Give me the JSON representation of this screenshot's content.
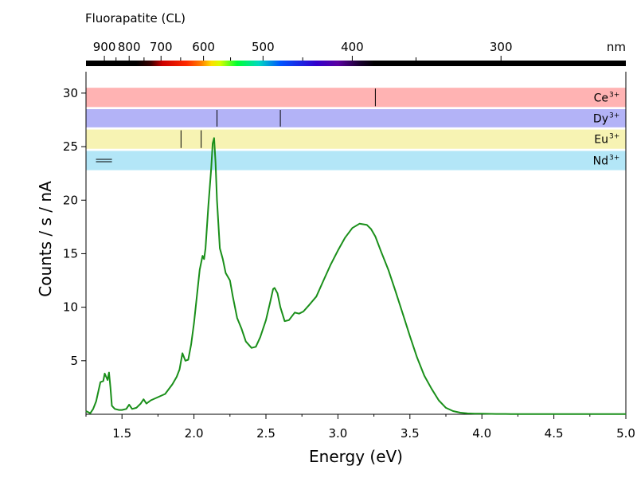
{
  "chart_data": {
    "type": "line",
    "title": "Fluorapatite (CL)",
    "xlabel": "Energy (eV)",
    "ylabel": "Counts / s / nA",
    "xlim": [
      1.25,
      5.0
    ],
    "ylim": [
      0,
      32
    ],
    "x_ticks": [
      1.5,
      2.0,
      2.5,
      3.0,
      3.5,
      4.0,
      4.5,
      5.0
    ],
    "x_tick_labels": [
      "1.5",
      "2.0",
      "2.5",
      "3.0",
      "3.5",
      "4.0",
      "4.5",
      "5.0"
    ],
    "y_ticks": [
      5,
      10,
      15,
      20,
      25,
      30
    ],
    "y_tick_labels": [
      "5",
      "10",
      "15",
      "20",
      "25",
      "30"
    ],
    "top_axis": {
      "unit": "nm",
      "ticks_nm": [
        900,
        800,
        700,
        600,
        500,
        400,
        300
      ],
      "tick_labels": [
        "900",
        "800",
        "700",
        "600",
        "500",
        "400",
        "300"
      ]
    },
    "series": [
      {
        "color": "#1a8f1a",
        "x": [
          1.25,
          1.28,
          1.3,
          1.32,
          1.35,
          1.37,
          1.38,
          1.4,
          1.41,
          1.42,
          1.43,
          1.45,
          1.48,
          1.5,
          1.53,
          1.55,
          1.57,
          1.6,
          1.63,
          1.65,
          1.67,
          1.7,
          1.75,
          1.8,
          1.85,
          1.88,
          1.9,
          1.92,
          1.94,
          1.96,
          1.98,
          2.0,
          2.02,
          2.04,
          2.06,
          2.07,
          2.08,
          2.1,
          2.12,
          2.13,
          2.14,
          2.15,
          2.16,
          2.18,
          2.2,
          2.22,
          2.25,
          2.27,
          2.3,
          2.33,
          2.36,
          2.4,
          2.43,
          2.46,
          2.5,
          2.53,
          2.55,
          2.56,
          2.58,
          2.6,
          2.63,
          2.66,
          2.7,
          2.73,
          2.76,
          2.8,
          2.85,
          2.9,
          2.95,
          3.0,
          3.05,
          3.1,
          3.15,
          3.2,
          3.23,
          3.26,
          3.3,
          3.35,
          3.4,
          3.45,
          3.5,
          3.55,
          3.6,
          3.65,
          3.7,
          3.75,
          3.8,
          3.85,
          3.9,
          3.95,
          4.0,
          4.1,
          4.2,
          4.3,
          4.4,
          4.5,
          4.6,
          4.7,
          4.8,
          4.9,
          5.0
        ],
        "y": [
          0.3,
          0.1,
          0.5,
          1.2,
          3.0,
          3.1,
          3.8,
          3.2,
          3.9,
          2.5,
          0.8,
          0.5,
          0.4,
          0.4,
          0.5,
          0.9,
          0.5,
          0.6,
          1.0,
          1.4,
          1.0,
          1.3,
          1.6,
          1.9,
          2.8,
          3.5,
          4.2,
          5.7,
          5.0,
          5.1,
          6.5,
          8.5,
          11.0,
          13.5,
          14.8,
          14.5,
          15.5,
          19.5,
          23.0,
          25.3,
          25.8,
          23.5,
          20.0,
          15.5,
          14.5,
          13.2,
          12.5,
          11.0,
          9.0,
          8.0,
          6.8,
          6.2,
          6.3,
          7.2,
          8.8,
          10.5,
          11.7,
          11.8,
          11.3,
          10.0,
          8.7,
          8.8,
          9.5,
          9.4,
          9.6,
          10.2,
          11.0,
          12.5,
          14.0,
          15.3,
          16.5,
          17.4,
          17.8,
          17.7,
          17.3,
          16.6,
          15.2,
          13.5,
          11.5,
          9.4,
          7.3,
          5.3,
          3.6,
          2.4,
          1.3,
          0.6,
          0.3,
          0.15,
          0.08,
          0.05,
          0.05,
          0.03,
          0.02,
          0.02,
          0.02,
          0.02,
          0.02,
          0.02,
          0.02,
          0.02,
          0.02
        ]
      }
    ],
    "ion_bands": [
      {
        "name": "Ce",
        "sup": "3+",
        "color": "#ffb3b3",
        "y_range": [
          28.7,
          30.5
        ],
        "lines_ev": [
          3.26
        ]
      },
      {
        "name": "Dy",
        "sup": "3+",
        "color": "#b3b3f7",
        "y_range": [
          26.8,
          28.5
        ],
        "lines_ev": [
          2.16,
          2.6
        ]
      },
      {
        "name": "Eu",
        "sup": "3+",
        "color": "#f7f3b3",
        "y_range": [
          24.8,
          26.6
        ],
        "lines_ev": [
          1.91,
          2.05
        ]
      },
      {
        "name": "Nd",
        "sup": "3+",
        "color": "#b3e6f7",
        "y_range": [
          22.8,
          24.6
        ],
        "lines_ev": [
          1.32,
          1.43
        ]
      }
    ],
    "grid": false,
    "legend": "none"
  }
}
